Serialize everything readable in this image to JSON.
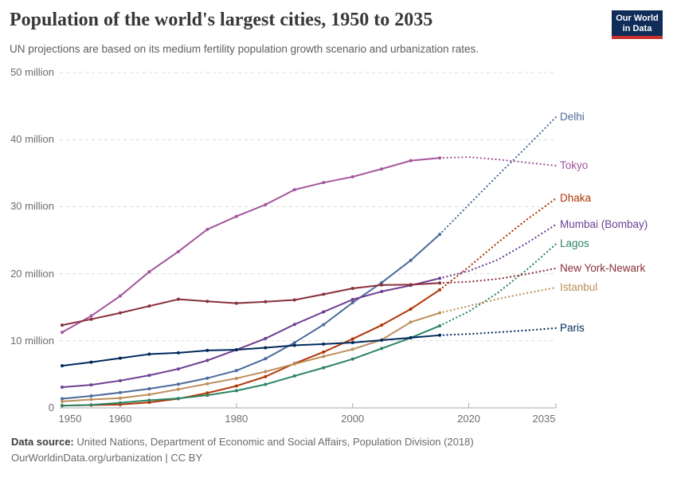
{
  "header": {
    "title": "Population of the world's largest cities, 1950 to 2035",
    "subtitle": "UN projections are based on its medium fertility population growth scenario and urbanization rates."
  },
  "logo": {
    "line1": "Our World",
    "line2": "in Data",
    "bg": "#102d5a",
    "stripe": "#c9312c",
    "text_color": "#ffffff"
  },
  "chart_data": {
    "type": "line",
    "title": "Population of the world's largest cities, 1950 to 2035",
    "unit": "million people",
    "grid": "horizontal-dashed",
    "legend_position": "right-end-labels",
    "xlim": [
      1950,
      2035
    ],
    "ylim": [
      0,
      50
    ],
    "x_years_observed": [
      1950,
      1955,
      1960,
      1965,
      1970,
      1975,
      1980,
      1985,
      1990,
      1995,
      2000,
      2005,
      2010,
      2015
    ],
    "x_years_projected": [
      2015,
      2020,
      2025,
      2030,
      2035
    ],
    "yticks": [
      {
        "value": 0,
        "label": "0"
      },
      {
        "value": 10,
        "label": "10 million"
      },
      {
        "value": 20,
        "label": "20 million"
      },
      {
        "value": 30,
        "label": "30 million"
      },
      {
        "value": 40,
        "label": "40 million"
      },
      {
        "value": 50,
        "label": "50 million"
      }
    ],
    "xticks": [
      {
        "value": 1950,
        "label": "1950"
      },
      {
        "value": 1960,
        "label": "1960"
      },
      {
        "value": 1980,
        "label": "1980"
      },
      {
        "value": 2000,
        "label": "2000"
      },
      {
        "value": 2020,
        "label": "2020"
      },
      {
        "value": 2035,
        "label": "2035"
      }
    ],
    "series": [
      {
        "name": "Delhi",
        "color": "#4C6A9C",
        "observed": [
          1.37,
          1.78,
          2.28,
          2.85,
          3.53,
          4.43,
          5.56,
          7.33,
          9.73,
          12.41,
          15.69,
          18.67,
          21.99,
          25.87
        ],
        "projected": [
          25.87,
          30.29,
          34.67,
          38.94,
          43.35
        ]
      },
      {
        "name": "Tokyo",
        "color": "#A2559C",
        "observed": [
          11.27,
          13.71,
          16.68,
          20.29,
          23.3,
          26.61,
          28.55,
          30.3,
          32.53,
          33.59,
          34.45,
          35.62,
          36.86,
          37.26
        ],
        "projected": [
          37.26,
          37.39,
          37.03,
          36.57,
          36.11
        ]
      },
      {
        "name": "Dhaka",
        "color": "#B13507",
        "observed": [
          0.34,
          0.41,
          0.51,
          0.82,
          1.37,
          2.22,
          3.27,
          4.66,
          6.62,
          8.33,
          10.28,
          12.33,
          14.73,
          17.6
        ],
        "projected": [
          17.6,
          21.01,
          24.65,
          28.08,
          31.23
        ]
      },
      {
        "name": "Mumbai (Bombay)",
        "color": "#6D3E91",
        "observed": [
          3.09,
          3.43,
          4.06,
          4.85,
          5.81,
          7.08,
          8.66,
          10.34,
          12.44,
          14.31,
          16.15,
          17.35,
          18.26,
          19.32
        ],
        "projected": [
          19.32,
          20.41,
          22.09,
          24.57,
          27.34
        ]
      },
      {
        "name": "Lagos",
        "color": "#2C8465",
        "observed": [
          0.33,
          0.45,
          0.76,
          1.14,
          1.41,
          1.89,
          2.57,
          3.5,
          4.76,
          5.98,
          7.28,
          8.86,
          10.44,
          12.24
        ],
        "projected": [
          12.24,
          14.37,
          17.16,
          20.6,
          24.42
        ]
      },
      {
        "name": "New York-Newark",
        "color": "#883039",
        "observed": [
          12.34,
          13.22,
          14.16,
          15.18,
          16.19,
          15.88,
          15.6,
          15.83,
          16.09,
          16.94,
          17.81,
          18.32,
          18.37,
          18.62
        ],
        "projected": [
          18.62,
          18.8,
          19.23,
          19.96,
          20.8
        ]
      },
      {
        "name": "Istanbul",
        "color": "#BC8E5A",
        "observed": [
          0.97,
          1.25,
          1.45,
          1.99,
          2.77,
          3.6,
          4.4,
          5.41,
          6.55,
          7.67,
          8.74,
          10.14,
          12.79,
          14.16
        ],
        "projected": [
          14.16,
          15.19,
          16.24,
          17.12,
          17.94
        ]
      },
      {
        "name": "Paris",
        "color": "#00295B",
        "observed": [
          6.28,
          6.82,
          7.41,
          8.01,
          8.21,
          8.56,
          8.67,
          8.96,
          9.33,
          9.51,
          9.74,
          10.09,
          10.46,
          10.83
        ],
        "projected": [
          10.83,
          11.02,
          11.27,
          11.56,
          11.89
        ]
      }
    ]
  },
  "footer": {
    "source_label": "Data source:",
    "source_text": " United Nations, Department of Economic and Social Affairs, Population Division (2018)",
    "note": "OurWorldinData.org/urbanization | CC BY"
  }
}
